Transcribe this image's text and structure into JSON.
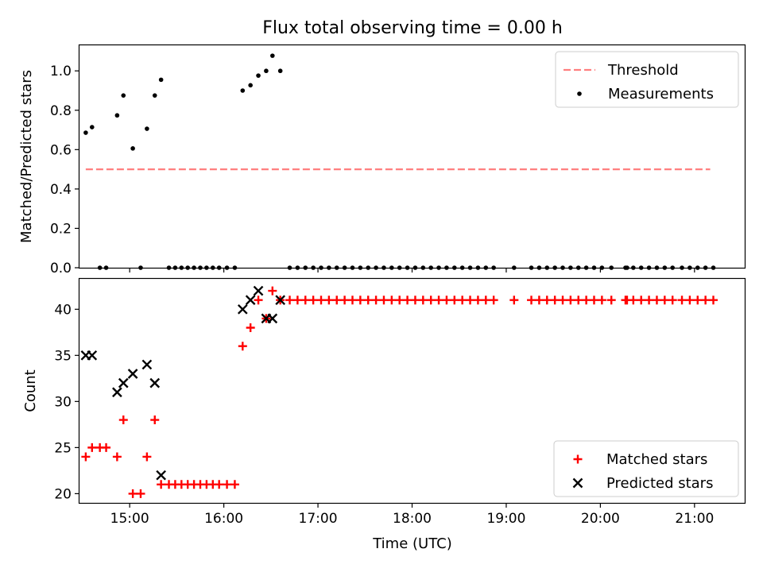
{
  "figure": {
    "title": "Flux total observing time = 0.00 h"
  },
  "chart_data": [
    {
      "type": "scatter",
      "ylabel": "Matched/Predicted stars",
      "xlabel": "",
      "xlim": [
        "14:28",
        "21:32"
      ],
      "ylim": [
        0.0,
        1.13
      ],
      "yticks": [
        0.0,
        0.2,
        0.4,
        0.6,
        0.8,
        1.0
      ],
      "ytick_labels": [
        "0.0",
        "0.2",
        "0.4",
        "0.6",
        "0.8",
        "1.0"
      ],
      "xticks": [
        "15:00",
        "16:00",
        "17:00",
        "18:00",
        "19:00",
        "20:00",
        "21:00"
      ],
      "show_xtick_labels": false,
      "grid": false,
      "legend_position": "upper right",
      "threshold": {
        "name": "Threshold",
        "value": 0.5,
        "x_range": [
          "14:32",
          "21:10"
        ],
        "color": "#ff7f7f",
        "style": "dashed"
      },
      "series": [
        {
          "name": "Measurements",
          "color": "#000000",
          "marker": "dot",
          "points": [
            [
              "14:32",
              0.686
            ],
            [
              "14:36",
              0.714
            ],
            [
              "14:41",
              0.0
            ],
            [
              "14:45",
              0.0
            ],
            [
              "14:52",
              0.774
            ],
            [
              "14:56",
              0.875
            ],
            [
              "15:02",
              0.606
            ],
            [
              "15:07",
              0.0
            ],
            [
              "15:11",
              0.706
            ],
            [
              "15:16",
              0.875
            ],
            [
              "15:20",
              0.955
            ],
            [
              "15:25",
              0.0
            ],
            [
              "15:29",
              0.0
            ],
            [
              "15:33",
              0.0
            ],
            [
              "15:37",
              0.0
            ],
            [
              "15:41",
              0.0
            ],
            [
              "15:45",
              0.0
            ],
            [
              "15:49",
              0.0
            ],
            [
              "15:53",
              0.0
            ],
            [
              "15:57",
              0.0
            ],
            [
              "16:02",
              0.0
            ],
            [
              "16:07",
              0.0
            ],
            [
              "16:12",
              0.9
            ],
            [
              "16:17",
              0.927
            ],
            [
              "16:22",
              0.976
            ],
            [
              "16:27",
              1.0
            ],
            [
              "16:31",
              1.077
            ],
            [
              "16:36",
              1.0
            ],
            [
              "16:42",
              0.0
            ],
            [
              "16:47",
              0.0
            ],
            [
              "16:52",
              0.0
            ],
            [
              "16:57",
              0.0
            ],
            [
              "17:02",
              0.0
            ],
            [
              "17:07",
              0.0
            ],
            [
              "17:12",
              0.0
            ],
            [
              "17:17",
              0.0
            ],
            [
              "17:22",
              0.0
            ],
            [
              "17:27",
              0.0
            ],
            [
              "17:32",
              0.0
            ],
            [
              "17:37",
              0.0
            ],
            [
              "17:42",
              0.0
            ],
            [
              "17:47",
              0.0
            ],
            [
              "17:52",
              0.0
            ],
            [
              "17:57",
              0.0
            ],
            [
              "18:02",
              0.0
            ],
            [
              "18:07",
              0.0
            ],
            [
              "18:12",
              0.0
            ],
            [
              "18:17",
              0.0
            ],
            [
              "18:22",
              0.0
            ],
            [
              "18:27",
              0.0
            ],
            [
              "18:32",
              0.0
            ],
            [
              "18:37",
              0.0
            ],
            [
              "18:42",
              0.0
            ],
            [
              "18:47",
              0.0
            ],
            [
              "18:52",
              0.0
            ],
            [
              "19:05",
              0.0
            ],
            [
              "19:16",
              0.0
            ],
            [
              "19:21",
              0.0
            ],
            [
              "19:26",
              0.0
            ],
            [
              "19:31",
              0.0
            ],
            [
              "19:36",
              0.0
            ],
            [
              "19:41",
              0.0
            ],
            [
              "19:46",
              0.0
            ],
            [
              "19:51",
              0.0
            ],
            [
              "19:56",
              0.0
            ],
            [
              "20:01",
              0.0
            ],
            [
              "20:07",
              0.0
            ],
            [
              "20:16",
              0.0
            ],
            [
              "20:17",
              0.0
            ],
            [
              "20:21",
              0.0
            ],
            [
              "20:26",
              0.0
            ],
            [
              "20:31",
              0.0
            ],
            [
              "20:36",
              0.0
            ],
            [
              "20:41",
              0.0
            ],
            [
              "20:46",
              0.0
            ],
            [
              "20:52",
              0.0
            ],
            [
              "20:57",
              0.0
            ],
            [
              "21:02",
              0.0
            ],
            [
              "21:07",
              0.0
            ],
            [
              "21:12",
              0.0
            ]
          ]
        }
      ]
    },
    {
      "type": "scatter",
      "ylabel": "Count",
      "xlabel": "Time (UTC)",
      "xlim": [
        "14:28",
        "21:32"
      ],
      "ylim": [
        19.0,
        43.3
      ],
      "yticks": [
        20,
        25,
        30,
        35,
        40
      ],
      "ytick_labels": [
        "20",
        "25",
        "30",
        "35",
        "40"
      ],
      "xticks": [
        "15:00",
        "16:00",
        "17:00",
        "18:00",
        "19:00",
        "20:00",
        "21:00"
      ],
      "show_xtick_labels": true,
      "grid": false,
      "legend_position": "lower right",
      "series": [
        {
          "name": "Matched stars",
          "color": "#ff0000",
          "marker": "plus",
          "points": [
            [
              "14:32",
              24
            ],
            [
              "14:36",
              25
            ],
            [
              "14:41",
              25
            ],
            [
              "14:45",
              25
            ],
            [
              "14:52",
              24
            ],
            [
              "14:56",
              28
            ],
            [
              "15:02",
              20
            ],
            [
              "15:07",
              20
            ],
            [
              "15:11",
              24
            ],
            [
              "15:16",
              28
            ],
            [
              "15:20",
              21
            ],
            [
              "15:25",
              21
            ],
            [
              "15:29",
              21
            ],
            [
              "15:33",
              21
            ],
            [
              "15:37",
              21
            ],
            [
              "15:41",
              21
            ],
            [
              "15:45",
              21
            ],
            [
              "15:49",
              21
            ],
            [
              "15:53",
              21
            ],
            [
              "15:57",
              21
            ],
            [
              "16:02",
              21
            ],
            [
              "16:07",
              21
            ],
            [
              "16:12",
              36
            ],
            [
              "16:17",
              38
            ],
            [
              "16:22",
              41
            ],
            [
              "16:27",
              39
            ],
            [
              "16:31",
              42
            ],
            [
              "16:36",
              41
            ],
            [
              "16:42",
              41
            ],
            [
              "16:47",
              41
            ],
            [
              "16:52",
              41
            ],
            [
              "16:57",
              41
            ],
            [
              "17:02",
              41
            ],
            [
              "17:07",
              41
            ],
            [
              "17:12",
              41
            ],
            [
              "17:17",
              41
            ],
            [
              "17:22",
              41
            ],
            [
              "17:27",
              41
            ],
            [
              "17:32",
              41
            ],
            [
              "17:37",
              41
            ],
            [
              "17:42",
              41
            ],
            [
              "17:47",
              41
            ],
            [
              "17:52",
              41
            ],
            [
              "17:57",
              41
            ],
            [
              "18:02",
              41
            ],
            [
              "18:07",
              41
            ],
            [
              "18:12",
              41
            ],
            [
              "18:17",
              41
            ],
            [
              "18:22",
              41
            ],
            [
              "18:27",
              41
            ],
            [
              "18:32",
              41
            ],
            [
              "18:37",
              41
            ],
            [
              "18:42",
              41
            ],
            [
              "18:47",
              41
            ],
            [
              "18:52",
              41
            ],
            [
              "19:05",
              41
            ],
            [
              "19:16",
              41
            ],
            [
              "19:21",
              41
            ],
            [
              "19:26",
              41
            ],
            [
              "19:31",
              41
            ],
            [
              "19:36",
              41
            ],
            [
              "19:41",
              41
            ],
            [
              "19:46",
              41
            ],
            [
              "19:51",
              41
            ],
            [
              "19:56",
              41
            ],
            [
              "20:01",
              41
            ],
            [
              "20:07",
              41
            ],
            [
              "20:16",
              41
            ],
            [
              "20:17",
              41
            ],
            [
              "20:21",
              41
            ],
            [
              "20:26",
              41
            ],
            [
              "20:31",
              41
            ],
            [
              "20:36",
              41
            ],
            [
              "20:41",
              41
            ],
            [
              "20:46",
              41
            ],
            [
              "20:52",
              41
            ],
            [
              "20:57",
              41
            ],
            [
              "21:02",
              41
            ],
            [
              "21:07",
              41
            ],
            [
              "21:12",
              41
            ]
          ]
        },
        {
          "name": "Predicted stars",
          "color": "#000000",
          "marker": "x",
          "points": [
            [
              "14:32",
              35
            ],
            [
              "14:36",
              35
            ],
            [
              "14:52",
              31
            ],
            [
              "14:56",
              32
            ],
            [
              "15:02",
              33
            ],
            [
              "15:11",
              34
            ],
            [
              "15:16",
              32
            ],
            [
              "15:20",
              22
            ],
            [
              "16:12",
              40
            ],
            [
              "16:17",
              41
            ],
            [
              "16:22",
              42
            ],
            [
              "16:27",
              39
            ],
            [
              "16:31",
              39
            ],
            [
              "16:36",
              41
            ]
          ]
        }
      ]
    }
  ]
}
